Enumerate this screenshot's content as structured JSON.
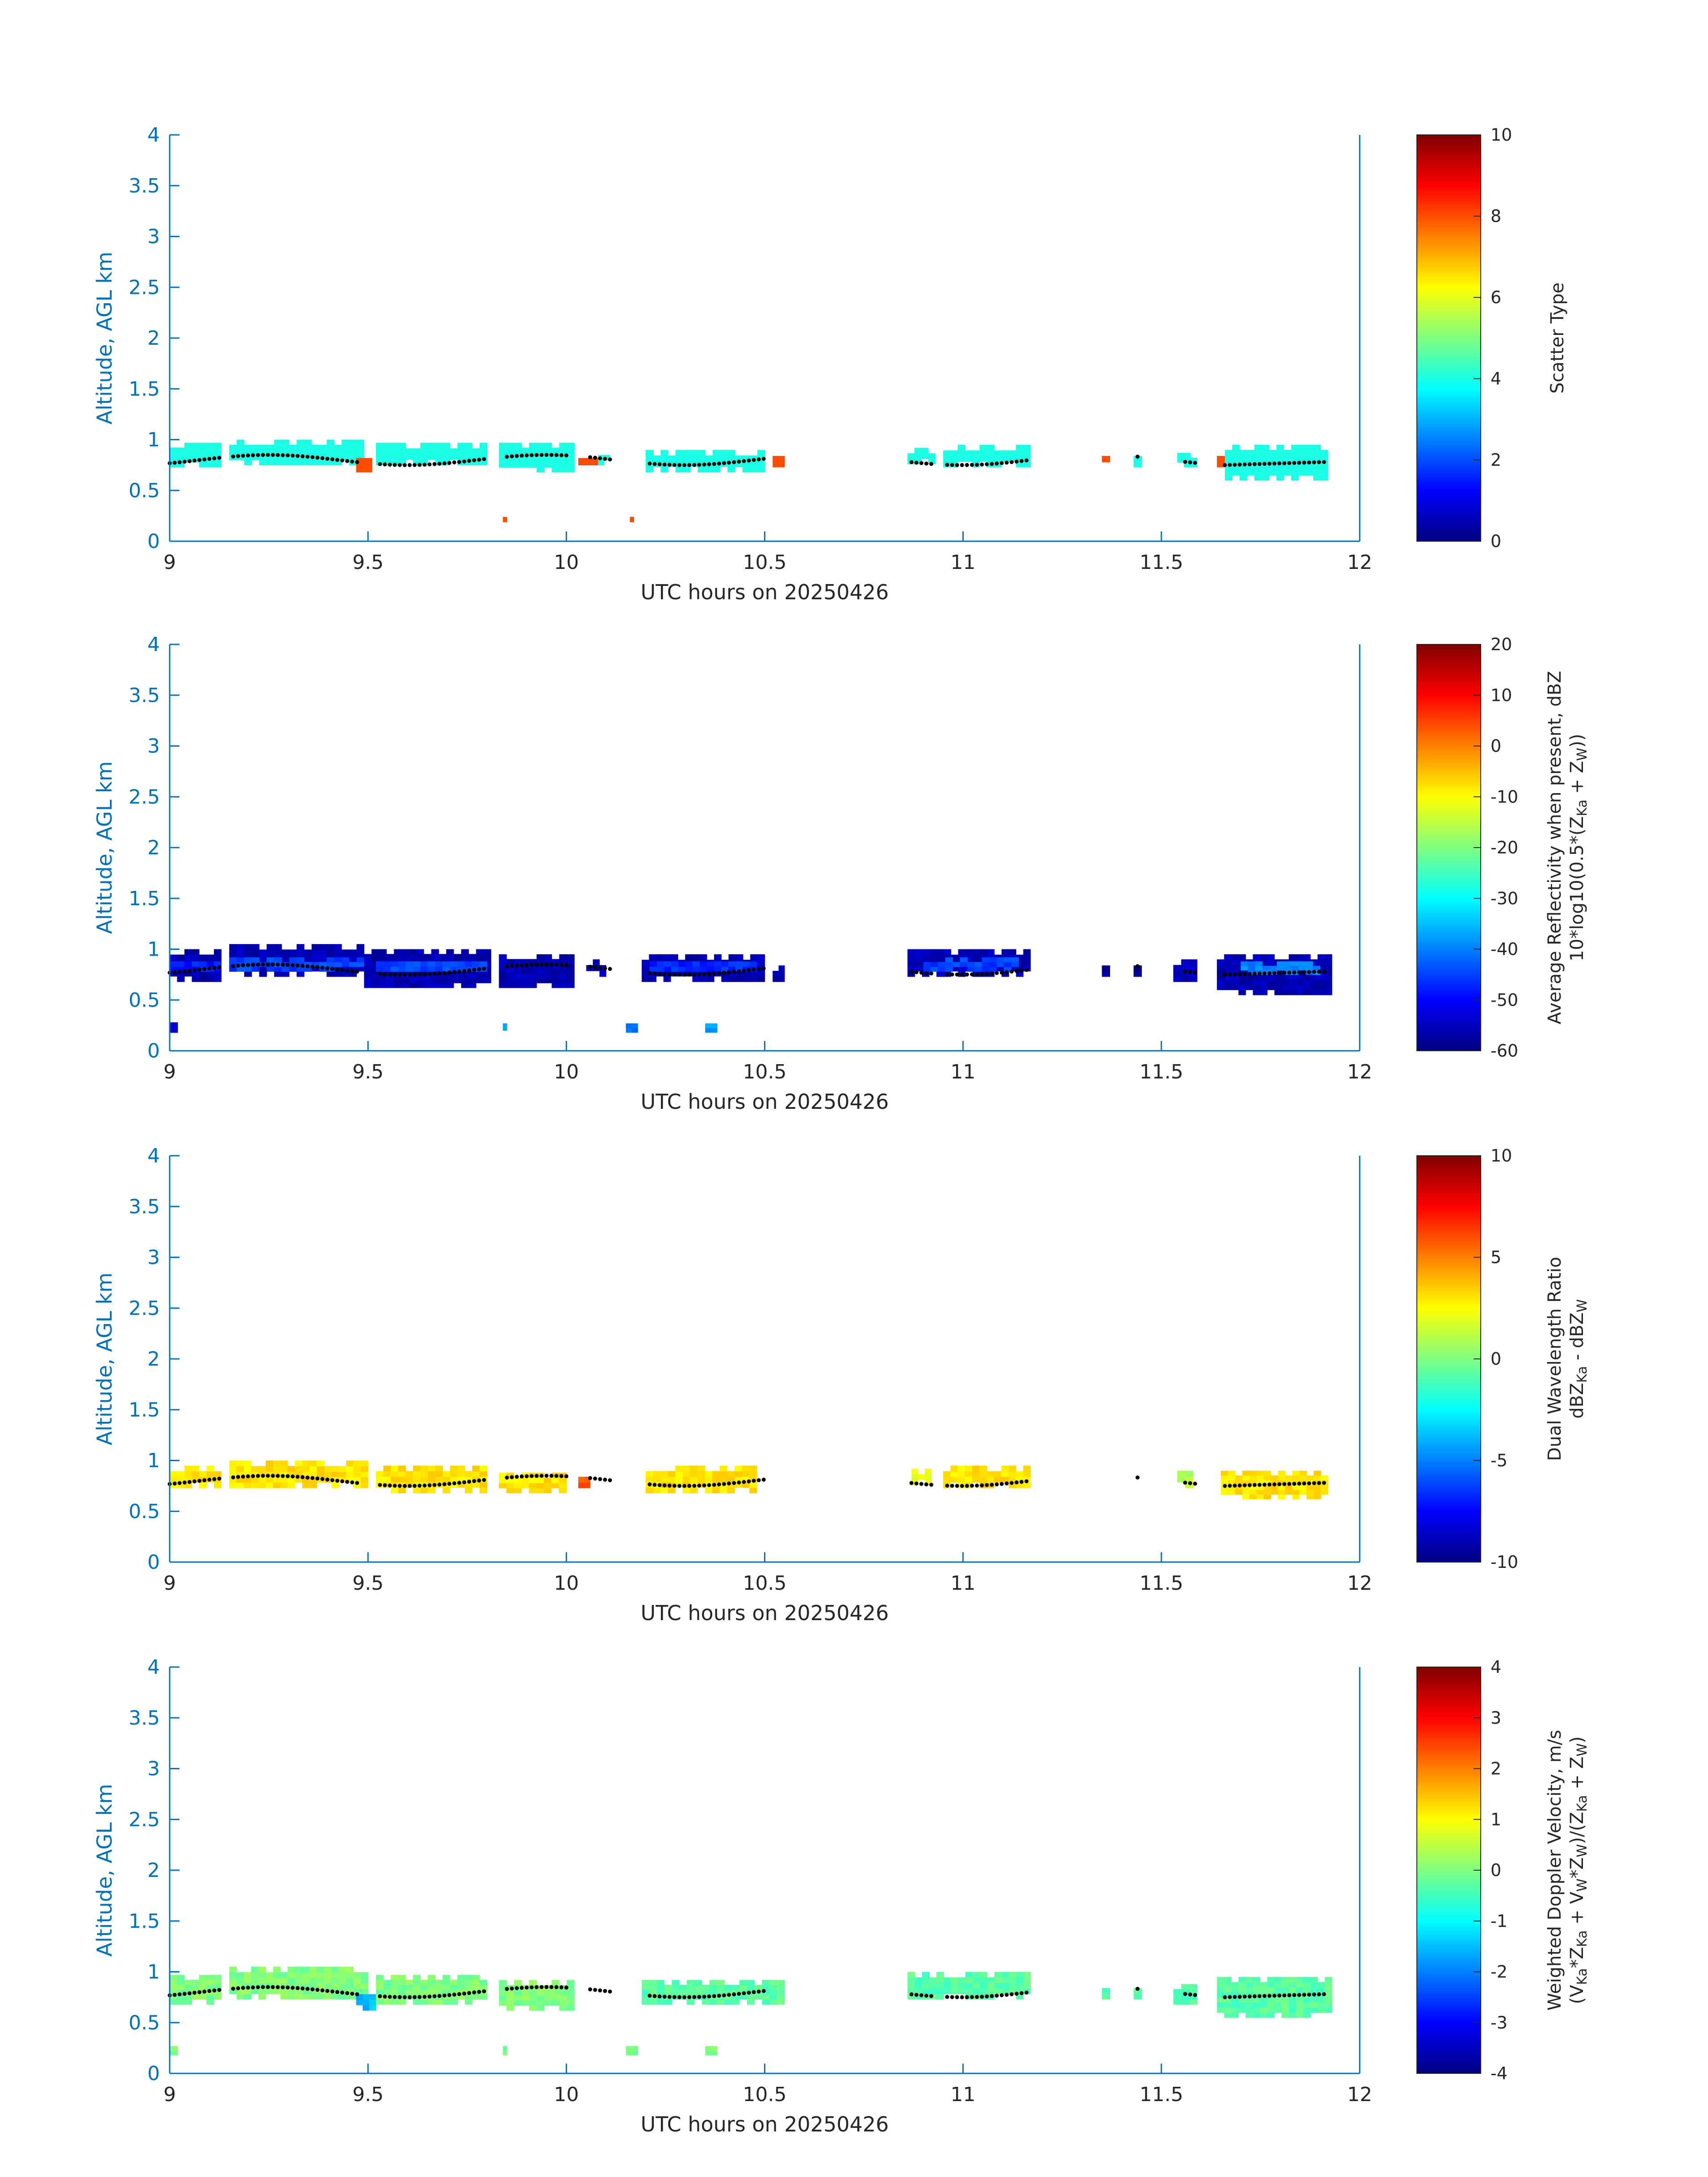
{
  "chart_data": [
    {
      "type": "heatmap",
      "xlabel": "UTC hours on 20250426",
      "ylabel": "Altitude, AGL km",
      "xlim": [
        9,
        12
      ],
      "ylim": [
        0,
        4
      ],
      "xticks": [
        "9",
        "9.5",
        "10",
        "10.5",
        "11",
        "11.5",
        "12"
      ],
      "yticks": [
        "0",
        "0.5",
        "1",
        "1.5",
        "2",
        "2.5",
        "3",
        "3.5",
        "4"
      ],
      "colormap": "jet",
      "colorbar": {
        "label_lines": [
          "Scatter Type"
        ],
        "range": [
          0,
          10
        ],
        "ticks": [
          "0",
          "2",
          "4",
          "6",
          "8",
          "10"
        ]
      },
      "cloud_top_dots": true,
      "value_summary": [
        {
          "x_range": [
            9.0,
            9.13
          ],
          "alt_range": [
            0.73,
            0.97
          ],
          "value": 4
        },
        {
          "x_range": [
            9.15,
            9.49
          ],
          "alt_range": [
            0.75,
            1.0
          ],
          "value": 4
        },
        {
          "x_range": [
            9.47,
            9.51
          ],
          "alt_range": [
            0.68,
            0.82
          ],
          "value": 8
        },
        {
          "x_range": [
            9.52,
            9.8
          ],
          "alt_range": [
            0.75,
            0.97
          ],
          "value": 4
        },
        {
          "x_range": [
            9.83,
            10.02
          ],
          "alt_range": [
            0.68,
            0.97
          ],
          "value": 4
        },
        {
          "x_range": [
            10.03,
            10.08
          ],
          "alt_range": [
            0.75,
            0.82
          ],
          "value": 8
        },
        {
          "x_range": [
            10.08,
            10.11
          ],
          "alt_range": [
            0.75,
            0.9
          ],
          "value": 4
        },
        {
          "x_range": [
            9.84,
            9.85
          ],
          "alt_range": [
            0.19,
            0.24
          ],
          "value": 8
        },
        {
          "x_range": [
            10.16,
            10.17
          ],
          "alt_range": [
            0.19,
            0.24
          ],
          "value": 8
        },
        {
          "x_range": [
            10.2,
            10.5
          ],
          "alt_range": [
            0.68,
            0.9
          ],
          "value": 4
        },
        {
          "x_range": [
            10.52,
            10.55
          ],
          "alt_range": [
            0.73,
            0.84
          ],
          "value": 8
        },
        {
          "x_range": [
            10.86,
            10.93
          ],
          "alt_range": [
            0.76,
            0.92
          ],
          "value": 4
        },
        {
          "x_range": [
            10.95,
            11.17
          ],
          "alt_range": [
            0.73,
            0.95
          ],
          "value": 4
        },
        {
          "x_range": [
            11.35,
            11.37
          ],
          "alt_range": [
            0.78,
            0.84
          ],
          "value": 8
        },
        {
          "x_range": [
            11.43,
            11.45
          ],
          "alt_range": [
            0.73,
            0.84
          ],
          "value": 4
        },
        {
          "x_range": [
            11.54,
            11.59
          ],
          "alt_range": [
            0.73,
            0.87
          ],
          "value": 4
        },
        {
          "x_range": [
            11.64,
            11.66
          ],
          "alt_range": [
            0.73,
            0.84
          ],
          "value": 8
        },
        {
          "x_range": [
            11.66,
            11.92
          ],
          "alt_range": [
            0.6,
            0.95
          ],
          "value": 4
        }
      ]
    },
    {
      "type": "heatmap",
      "xlabel": "UTC hours on 20250426",
      "ylabel": "Altitude, AGL km",
      "xlim": [
        9,
        12
      ],
      "ylim": [
        0,
        4
      ],
      "xticks": [
        "9",
        "9.5",
        "10",
        "10.5",
        "11",
        "11.5",
        "12"
      ],
      "yticks": [
        "0",
        "0.5",
        "1",
        "1.5",
        "2",
        "2.5",
        "3",
        "3.5",
        "4"
      ],
      "colormap": "jet",
      "colorbar": {
        "label_lines": [
          "Average Reflectivity when present, dBZ",
          "10*log10(0.5*(Z",
          "Ka",
          " + Z",
          "W",
          "))"
        ],
        "range": [
          -60,
          20
        ],
        "ticks": [
          "-60",
          "-50",
          "-40",
          "-30",
          "-20",
          "-10",
          "0",
          "10",
          "20"
        ]
      },
      "cloud_top_dots": true,
      "value_summary": [
        {
          "x_range": [
            9.0,
            9.13
          ],
          "alt_range": [
            0.68,
            1.0
          ],
          "value": -56
        },
        {
          "x_range": [
            9.0,
            9.13
          ],
          "alt_range": [
            0.78,
            0.88
          ],
          "value": -48
        },
        {
          "x_range": [
            9.15,
            9.49
          ],
          "alt_range": [
            0.73,
            1.05
          ],
          "value": -56
        },
        {
          "x_range": [
            9.15,
            9.49
          ],
          "alt_range": [
            0.78,
            0.92
          ],
          "value": -45
        },
        {
          "x_range": [
            9.49,
            9.81
          ],
          "alt_range": [
            0.62,
            1.0
          ],
          "value": -56
        },
        {
          "x_range": [
            9.52,
            9.8
          ],
          "alt_range": [
            0.78,
            0.88
          ],
          "value": -45
        },
        {
          "x_range": [
            9.83,
            10.02
          ],
          "alt_range": [
            0.62,
            0.95
          ],
          "value": -56
        },
        {
          "x_range": [
            10.05,
            10.1
          ],
          "alt_range": [
            0.73,
            0.9
          ],
          "value": -56
        },
        {
          "x_range": [
            9.0,
            9.02
          ],
          "alt_range": [
            0.18,
            0.28
          ],
          "value": -55
        },
        {
          "x_range": [
            9.84,
            9.85
          ],
          "alt_range": [
            0.2,
            0.27
          ],
          "value": -38
        },
        {
          "x_range": [
            10.15,
            10.18
          ],
          "alt_range": [
            0.18,
            0.27
          ],
          "value": -40
        },
        {
          "x_range": [
            10.35,
            10.38
          ],
          "alt_range": [
            0.18,
            0.27
          ],
          "value": -38
        },
        {
          "x_range": [
            10.19,
            10.5
          ],
          "alt_range": [
            0.68,
            0.95
          ],
          "value": -56
        },
        {
          "x_range": [
            10.21,
            10.48
          ],
          "alt_range": [
            0.78,
            0.88
          ],
          "value": -47
        },
        {
          "x_range": [
            10.52,
            10.55
          ],
          "alt_range": [
            0.68,
            0.84
          ],
          "value": -56
        },
        {
          "x_range": [
            10.86,
            11.17
          ],
          "alt_range": [
            0.73,
            1.0
          ],
          "value": -56
        },
        {
          "x_range": [
            10.9,
            11.14
          ],
          "alt_range": [
            0.78,
            0.92
          ],
          "value": -45
        },
        {
          "x_range": [
            11.35,
            11.37
          ],
          "alt_range": [
            0.73,
            0.84
          ],
          "value": -58
        },
        {
          "x_range": [
            11.43,
            11.45
          ],
          "alt_range": [
            0.73,
            0.84
          ],
          "value": -58
        },
        {
          "x_range": [
            11.53,
            11.59
          ],
          "alt_range": [
            0.68,
            0.9
          ],
          "value": -55
        },
        {
          "x_range": [
            11.64,
            11.93
          ],
          "alt_range": [
            0.55,
            0.95
          ],
          "value": -56
        },
        {
          "x_range": [
            11.7,
            11.9
          ],
          "alt_range": [
            0.75,
            0.88
          ],
          "value": -40
        }
      ]
    },
    {
      "type": "heatmap",
      "xlabel": "UTC hours on 20250426",
      "ylabel": "Altitude, AGL km",
      "xlim": [
        9,
        12
      ],
      "ylim": [
        0,
        4
      ],
      "xticks": [
        "9",
        "9.5",
        "10",
        "10.5",
        "11",
        "11.5",
        "12"
      ],
      "yticks": [
        "0",
        "0.5",
        "1",
        "1.5",
        "2",
        "2.5",
        "3",
        "3.5",
        "4"
      ],
      "colormap": "jet",
      "colorbar": {
        "label_lines": [
          "Dual Wavelength Ratio",
          "dBZ",
          "Ka",
          " - dBZ",
          "W"
        ],
        "range": [
          -10,
          10
        ],
        "ticks": [
          "-10",
          "-5",
          "0",
          "5",
          "10"
        ]
      },
      "cloud_top_dots": true,
      "value_summary": [
        {
          "x_range": [
            9.0,
            9.13
          ],
          "alt_range": [
            0.73,
            0.95
          ],
          "value": 3
        },
        {
          "x_range": [
            9.15,
            9.5
          ],
          "alt_range": [
            0.73,
            1.0
          ],
          "value": 3
        },
        {
          "x_range": [
            9.52,
            9.8
          ],
          "alt_range": [
            0.68,
            0.95
          ],
          "value": 3
        },
        {
          "x_range": [
            9.83,
            10.0
          ],
          "alt_range": [
            0.68,
            0.88
          ],
          "value": 3
        },
        {
          "x_range": [
            10.03,
            10.06
          ],
          "alt_range": [
            0.73,
            0.84
          ],
          "value": 6
        },
        {
          "x_range": [
            10.2,
            10.48
          ],
          "alt_range": [
            0.68,
            0.95
          ],
          "value": 3
        },
        {
          "x_range": [
            10.87,
            10.92
          ],
          "alt_range": [
            0.76,
            0.92
          ],
          "value": 2
        },
        {
          "x_range": [
            10.95,
            11.17
          ],
          "alt_range": [
            0.73,
            0.95
          ],
          "value": 3
        },
        {
          "x_range": [
            11.54,
            11.58
          ],
          "alt_range": [
            0.73,
            0.9
          ],
          "value": 1
        },
        {
          "x_range": [
            11.65,
            11.92
          ],
          "alt_range": [
            0.62,
            0.9
          ],
          "value": 3
        }
      ]
    },
    {
      "type": "heatmap",
      "xlabel": "UTC hours on 20250426",
      "ylabel": "Altitude, AGL km",
      "xlim": [
        9,
        12
      ],
      "ylim": [
        0,
        4
      ],
      "xticks": [
        "9",
        "9.5",
        "10",
        "10.5",
        "11",
        "11.5",
        "12"
      ],
      "yticks": [
        "0",
        "0.5",
        "1",
        "1.5",
        "2",
        "2.5",
        "3",
        "3.5",
        "4"
      ],
      "colormap": "jet",
      "colorbar": {
        "label_lines": [
          "Weighted Doppler Velocity, m/s",
          "(V",
          "Ka",
          "*Z",
          "Ka",
          " + V",
          "W",
          "*Z",
          "W",
          ")/(Z",
          "Ka",
          " + Z",
          "W",
          ")"
        ],
        "range": [
          -4,
          4
        ],
        "ticks": [
          "-4",
          "-3",
          "-2",
          "-1",
          "0",
          "1",
          "2",
          "3",
          "4"
        ]
      },
      "cloud_top_dots": true,
      "value_summary": [
        {
          "x_range": [
            9.0,
            9.13
          ],
          "alt_range": [
            0.68,
            0.97
          ],
          "value": 0
        },
        {
          "x_range": [
            9.15,
            9.5
          ],
          "alt_range": [
            0.73,
            1.05
          ],
          "value": 0
        },
        {
          "x_range": [
            9.47,
            9.52
          ],
          "alt_range": [
            0.62,
            0.78
          ],
          "value": -1.5
        },
        {
          "x_range": [
            9.52,
            9.8
          ],
          "alt_range": [
            0.68,
            0.97
          ],
          "value": 0
        },
        {
          "x_range": [
            9.83,
            10.02
          ],
          "alt_range": [
            0.62,
            0.92
          ],
          "value": 0
        },
        {
          "x_range": [
            9.0,
            9.02
          ],
          "alt_range": [
            0.18,
            0.27
          ],
          "value": 0
        },
        {
          "x_range": [
            9.84,
            9.85
          ],
          "alt_range": [
            0.18,
            0.27
          ],
          "value": 0
        },
        {
          "x_range": [
            10.15,
            10.18
          ],
          "alt_range": [
            0.18,
            0.27
          ],
          "value": 0
        },
        {
          "x_range": [
            10.35,
            10.38
          ],
          "alt_range": [
            0.18,
            0.27
          ],
          "value": 0
        },
        {
          "x_range": [
            10.19,
            10.55
          ],
          "alt_range": [
            0.68,
            0.92
          ],
          "value": -0.3
        },
        {
          "x_range": [
            10.86,
            11.17
          ],
          "alt_range": [
            0.73,
            1.0
          ],
          "value": -0.3
        },
        {
          "x_range": [
            11.35,
            11.37
          ],
          "alt_range": [
            0.73,
            0.84
          ],
          "value": -0.3
        },
        {
          "x_range": [
            11.43,
            11.45
          ],
          "alt_range": [
            0.73,
            0.84
          ],
          "value": -0.3
        },
        {
          "x_range": [
            11.53,
            11.59
          ],
          "alt_range": [
            0.68,
            0.88
          ],
          "value": -0.3
        },
        {
          "x_range": [
            11.64,
            11.93
          ],
          "alt_range": [
            0.55,
            0.95
          ],
          "value": -0.3
        }
      ]
    }
  ]
}
